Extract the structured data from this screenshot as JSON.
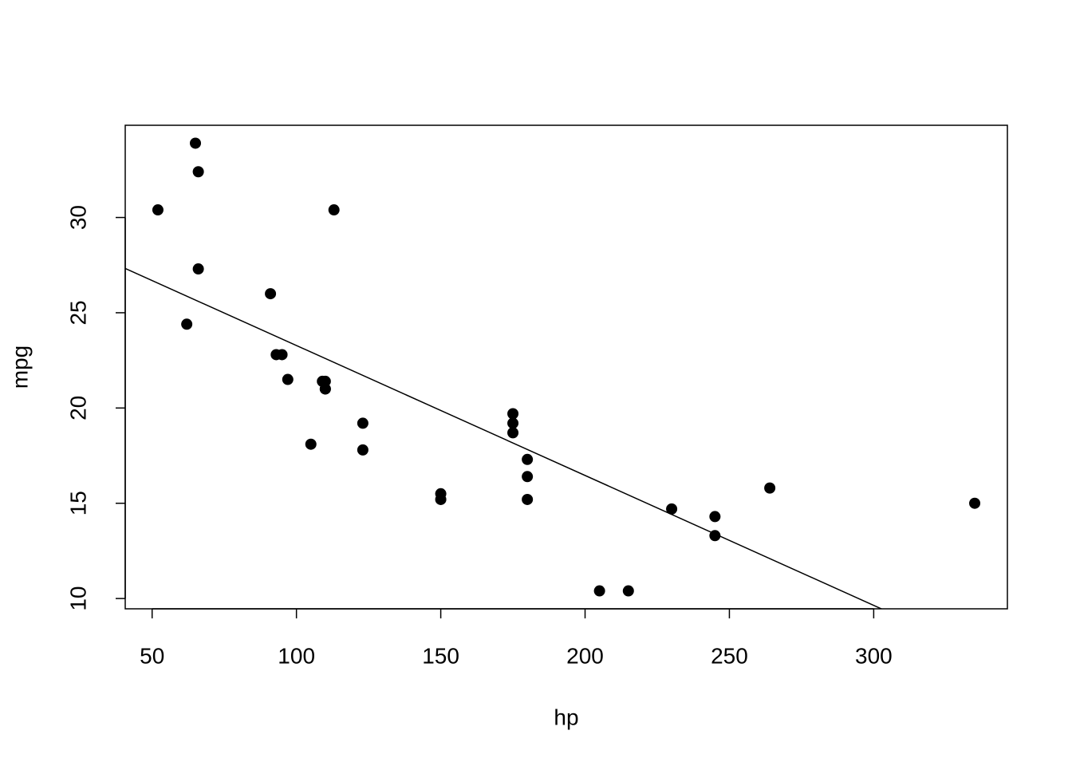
{
  "chart_data": {
    "type": "scatter",
    "x_label": "hp",
    "y_label": "mpg",
    "x": [
      110,
      110,
      93,
      110,
      175,
      105,
      245,
      62,
      95,
      123,
      123,
      180,
      180,
      180,
      205,
      215,
      230,
      66,
      52,
      65,
      97,
      150,
      150,
      245,
      175,
      66,
      91,
      113,
      264,
      175,
      335,
      109
    ],
    "values": [
      21.0,
      21.0,
      22.8,
      21.4,
      18.7,
      18.1,
      14.3,
      24.4,
      22.8,
      19.2,
      17.8,
      16.4,
      17.3,
      15.2,
      10.4,
      10.4,
      14.7,
      32.4,
      30.4,
      33.9,
      21.5,
      15.5,
      15.2,
      13.3,
      19.2,
      27.3,
      26.0,
      30.4,
      15.8,
      19.7,
      15.0,
      21.4
    ],
    "color": "#000000",
    "trend_line": {
      "intercept": 30.1,
      "slope": -0.0682,
      "color": "#000000"
    },
    "xlim": [
      40.68,
      346.32
    ],
    "xticks": [
      50,
      100,
      150,
      200,
      250,
      300
    ],
    "ylim": [
      9.46,
      34.84
    ],
    "yticks": [
      10,
      15,
      20,
      25,
      30
    ],
    "grid": false
  }
}
